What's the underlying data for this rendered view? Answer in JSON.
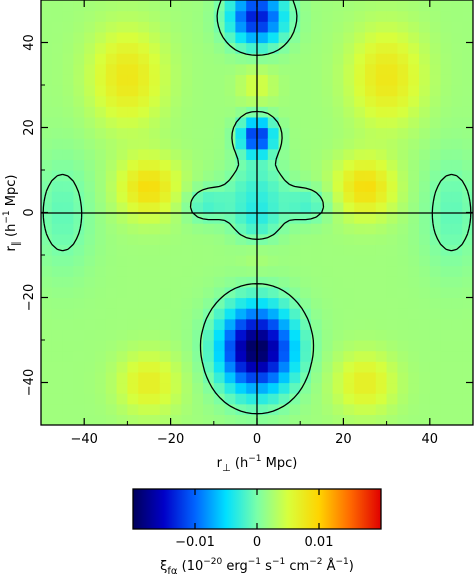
{
  "chart_data": {
    "type": "heatmap",
    "title": "",
    "x_axis": {
      "label": "r",
      "label_subscript": "⊥",
      "label_units": " (h",
      "label_units_sup": "−1",
      "label_units_end": " Mpc)",
      "range": [
        -50,
        50
      ],
      "ticks": [
        -40,
        -20,
        0,
        20,
        40
      ],
      "tick_labels": [
        "−40",
        "−20",
        "0",
        "20",
        "40"
      ]
    },
    "y_axis": {
      "label": "r",
      "label_subscript": "∥",
      "label_units": " (h",
      "label_units_sup": "−1",
      "label_units_end": " Mpc)",
      "range": [
        -50,
        50
      ],
      "ticks": [
        -40,
        -20,
        0,
        20,
        40
      ],
      "tick_labels": [
        "−40",
        "−20",
        "0",
        "20",
        "40"
      ]
    },
    "colorbar": {
      "range": [
        -0.02,
        0.02
      ],
      "ticks": [
        -0.01,
        0,
        0.01
      ],
      "tick_labels": [
        "−0.01",
        "0",
        "0.01"
      ],
      "label_symbol": "ξ",
      "label_symbol_sub": "fα",
      "label_units_pre": " (10",
      "label_units_parts": [
        {
          "base": "",
          "sup": "−20"
        },
        {
          "base": " erg",
          "sup": "−1"
        },
        {
          "base": " s",
          "sup": "−1"
        },
        {
          "base": " cm",
          "sup": "−2"
        },
        {
          "base": " Å",
          "sup": "−1"
        }
      ],
      "label_units_end": ")",
      "colormap": [
        "#00005a",
        "#0000c8",
        "#0064ff",
        "#00e0ff",
        "#7affa8",
        "#d8ff3c",
        "#ffd400",
        "#ff6a00",
        "#e00000"
      ]
    },
    "field": {
      "background": 0.002,
      "grid_step": 2.5,
      "features": [
        {
          "x": 0,
          "y": 46,
          "sx": 4.5,
          "sy": 4.5,
          "amp": -0.016
        },
        {
          "x": 0,
          "y": 18,
          "sx": 2.8,
          "sy": 3.0,
          "amp": -0.015
        },
        {
          "x": 0,
          "y": 6,
          "sx": 5,
          "sy": 5,
          "amp": -0.004
        },
        {
          "x": 0,
          "y": -2,
          "sx": 4,
          "sy": 4,
          "amp": -0.004
        },
        {
          "x": 0,
          "y": -32,
          "sx": 6,
          "sy": 7,
          "amp": -0.022
        },
        {
          "x": 0,
          "y": 30,
          "sx": 3,
          "sy": 3,
          "amp": 0.003
        },
        {
          "x": 0,
          "y": -10,
          "sx": 3,
          "sy": 3,
          "amp": 0.001
        },
        {
          "x": -25,
          "y": 6,
          "sx": 5,
          "sy": 5,
          "amp": 0.007
        },
        {
          "x": 25,
          "y": 6,
          "sx": 5,
          "sy": 5,
          "amp": 0.007
        },
        {
          "x": -30,
          "y": 32,
          "sx": 6,
          "sy": 8,
          "amp": 0.006
        },
        {
          "x": 30,
          "y": 32,
          "sx": 6,
          "sy": 8,
          "amp": 0.006
        },
        {
          "x": -25,
          "y": -40,
          "sx": 5,
          "sy": 5,
          "amp": 0.005
        },
        {
          "x": 25,
          "y": -40,
          "sx": 5,
          "sy": 5,
          "amp": 0.005
        },
        {
          "x": -12,
          "y": 2,
          "sx": 4,
          "sy": 3,
          "amp": -0.004
        },
        {
          "x": 12,
          "y": 2,
          "sx": 4,
          "sy": 3,
          "amp": -0.004
        },
        {
          "x": -45,
          "y": 0,
          "sx": 5,
          "sy": 10,
          "amp": -0.003
        },
        {
          "x": 45,
          "y": 0,
          "sx": 5,
          "sy": 10,
          "amp": -0.003
        }
      ]
    }
  }
}
